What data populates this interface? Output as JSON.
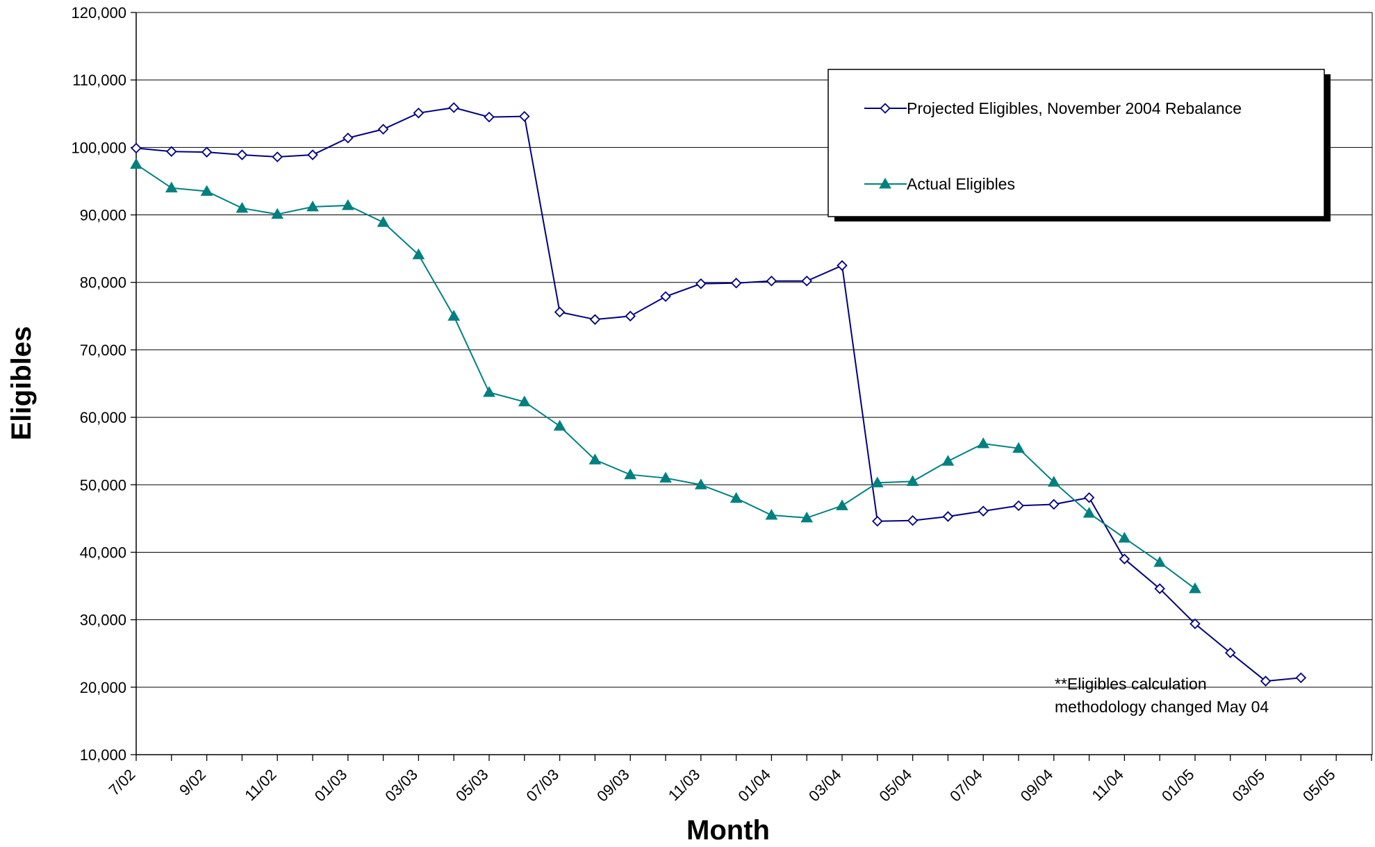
{
  "chart_data": {
    "type": "line",
    "xlabel": "Month",
    "ylabel": "Eligibles",
    "ylim": [
      10000,
      120000
    ],
    "y_ticks": [
      10000,
      20000,
      30000,
      40000,
      50000,
      60000,
      70000,
      80000,
      90000,
      100000,
      110000,
      120000
    ],
    "y_tick_labels": [
      "10,000",
      "20,000",
      "30,000",
      "40,000",
      "50,000",
      "60,000",
      "70,000",
      "80,000",
      "90,000",
      "100,000",
      "110,000",
      "120,000"
    ],
    "x_tick_labels": [
      "7/02",
      "9/02",
      "11/02",
      "01/03",
      "03/03",
      "05/03",
      "07/03",
      "09/03",
      "11/03",
      "01/04",
      "03/04",
      "05/04",
      "07/04",
      "09/04",
      "11/04",
      "01/05",
      "03/05",
      "05/05"
    ],
    "categories": [
      "2002-07",
      "2002-08",
      "2002-09",
      "2002-10",
      "2002-11",
      "2002-12",
      "2003-01",
      "2003-02",
      "2003-03",
      "2003-04",
      "2003-05",
      "2003-06",
      "2003-07",
      "2003-08",
      "2003-09",
      "2003-10",
      "2003-11",
      "2003-12",
      "2004-01",
      "2004-02",
      "2004-03",
      "2004-04",
      "2004-05",
      "2004-06",
      "2004-07",
      "2004-08",
      "2004-09",
      "2004-10",
      "2004-11",
      "2004-12",
      "2005-01",
      "2005-02",
      "2005-03",
      "2005-04",
      "2005-05"
    ],
    "grid": "horizontal",
    "legend_position": "top-right",
    "series": [
      {
        "name": "Projected Eligibles, November 2004 Rebalance",
        "color": "#000080",
        "marker": "diamond-open",
        "values": [
          99900,
          99400,
          99300,
          98900,
          98600,
          98900,
          101400,
          102700,
          105100,
          105900,
          104500,
          104600,
          75600,
          74500,
          75000,
          77900,
          79800,
          79900,
          80200,
          80200,
          82500,
          44600,
          44700,
          45300,
          46100,
          46900,
          47100,
          48100,
          39000,
          34600,
          29400,
          25100,
          20900,
          21400,
          null
        ]
      },
      {
        "name": "Actual Eligibles",
        "color": "#008080",
        "marker": "triangle-filled",
        "values": [
          97500,
          94000,
          93500,
          91000,
          90100,
          91200,
          91400,
          88900,
          84100,
          75000,
          63700,
          62300,
          58700,
          53700,
          51500,
          51000,
          50000,
          48000,
          45500,
          45100,
          46900,
          50300,
          50500,
          53500,
          56100,
          55400,
          50400,
          45800,
          42100,
          38500,
          34600,
          null,
          null,
          null,
          null
        ]
      }
    ],
    "annotations": [
      "**Eligibles calculation",
      "methodology changed  May 04"
    ]
  }
}
